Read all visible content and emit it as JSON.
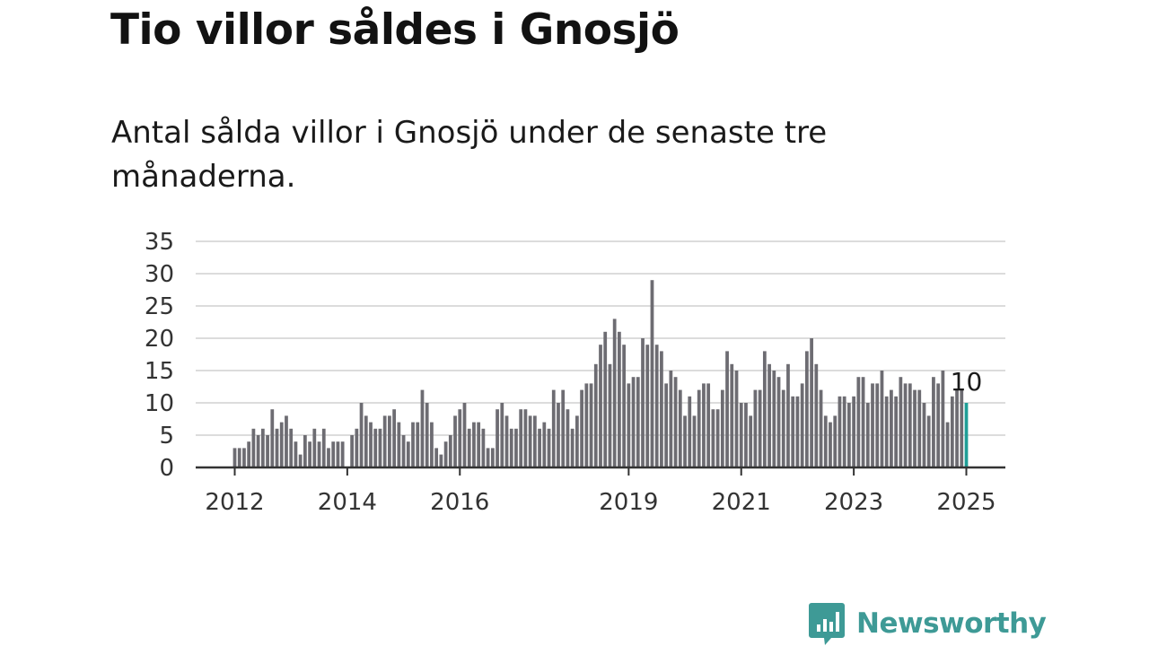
{
  "header": {
    "title": "Tio villor såldes i Gnosjö",
    "subtitle": "Antal sålda villor i Gnosjö under de senaste tre månaderna."
  },
  "brand": {
    "name": "Newsworthy",
    "color": "#3e9a96",
    "icon": "bar-chart-speech-bubble-icon"
  },
  "colors": {
    "bars": "#6d6c72",
    "highlight": "#1f9e97",
    "grid": "#dcdcdc",
    "axis": "#333333"
  },
  "chart_data": {
    "type": "bar",
    "title": "Tio villor såldes i Gnosjö",
    "subtitle": "Antal sålda villor i Gnosjö under de senaste tre månaderna.",
    "xlabel": "",
    "ylabel": "",
    "ylim": [
      0,
      35
    ],
    "yticks": [
      0,
      5,
      10,
      15,
      20,
      25,
      30,
      35
    ],
    "xtick_labels": [
      "2012",
      "2014",
      "2016",
      "2019",
      "2021",
      "2023",
      "2025"
    ],
    "x_start": "2012-01",
    "x_end": "2025-01",
    "grid": true,
    "values": [
      3,
      3,
      3,
      4,
      6,
      5,
      6,
      5,
      9,
      6,
      7,
      8,
      6,
      4,
      2,
      5,
      4,
      6,
      4,
      6,
      3,
      4,
      4,
      4,
      0,
      5,
      6,
      10,
      8,
      7,
      6,
      6,
      8,
      8,
      9,
      7,
      5,
      4,
      7,
      7,
      12,
      10,
      7,
      3,
      2,
      4,
      5,
      8,
      9,
      10,
      6,
      7,
      7,
      6,
      3,
      3,
      9,
      10,
      8,
      6,
      6,
      9,
      9,
      8,
      8,
      6,
      7,
      6,
      12,
      10,
      12,
      9,
      6,
      8,
      12,
      13,
      13,
      16,
      19,
      21,
      16,
      23,
      21,
      19,
      13,
      14,
      14,
      20,
      19,
      29,
      19,
      18,
      13,
      15,
      14,
      12,
      8,
      11,
      8,
      12,
      13,
      13,
      9,
      9,
      12,
      18,
      16,
      15,
      10,
      10,
      8,
      12,
      12,
      18,
      16,
      15,
      14,
      12,
      16,
      11,
      11,
      13,
      18,
      20,
      16,
      12,
      8,
      7,
      8,
      11,
      11,
      10,
      11,
      14,
      14,
      10,
      13,
      13,
      15,
      11,
      12,
      11,
      14,
      13,
      13,
      12,
      12,
      10,
      8,
      14,
      13,
      15,
      7,
      11,
      12,
      12,
      10
    ],
    "annotation": {
      "text": "10",
      "value": 10
    }
  }
}
